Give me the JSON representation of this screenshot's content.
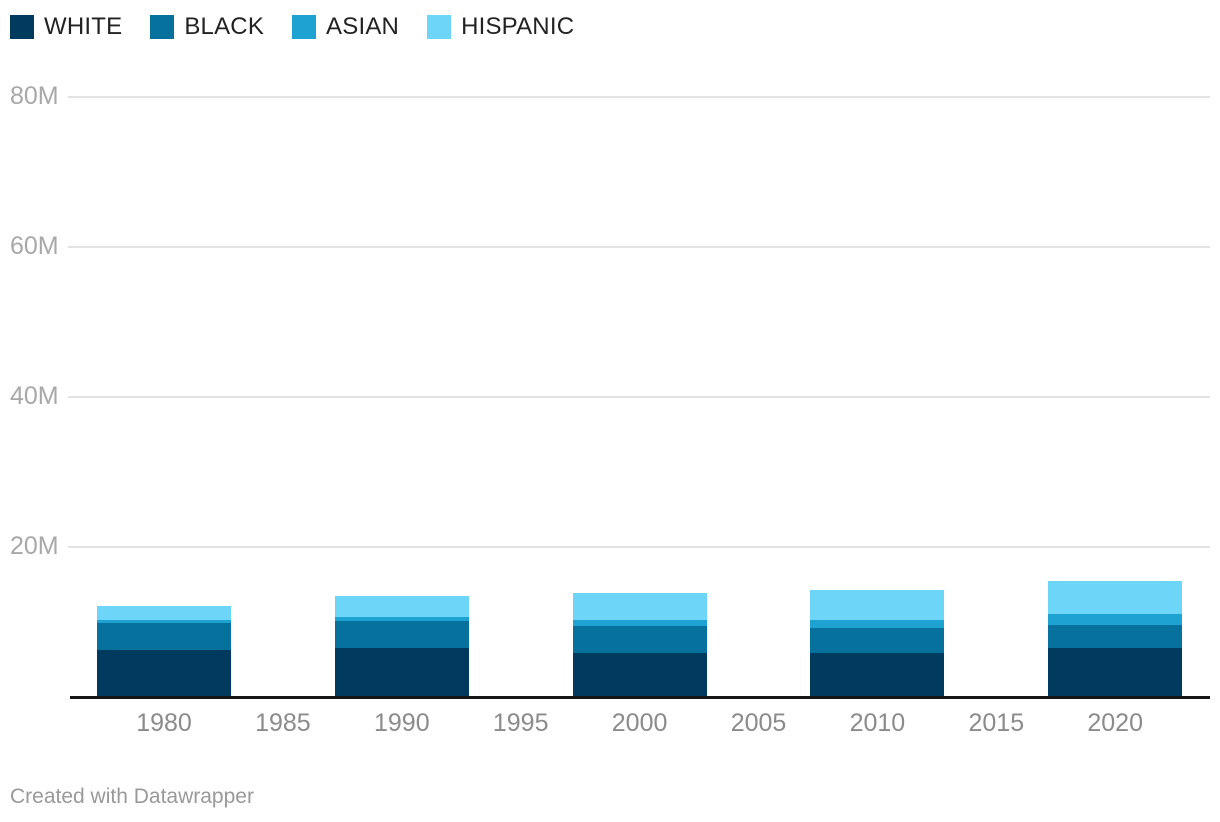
{
  "chart_data": {
    "type": "bar",
    "stacked": true,
    "title": "",
    "xlabel": "",
    "ylabel": "",
    "unit": "M",
    "categories": [
      "1980",
      "1990",
      "2000",
      "2010",
      "2020"
    ],
    "series": [
      {
        "name": "WHITE",
        "color": "#003A5E",
        "values": [
          6.2,
          6.4,
          5.7,
          5.8,
          6.4
        ]
      },
      {
        "name": "BLACK",
        "color": "#06719D",
        "values": [
          3.6,
          3.6,
          3.7,
          3.3,
          3.1
        ]
      },
      {
        "name": "ASIAN",
        "color": "#1EA2D2",
        "values": [
          0.35,
          0.6,
          0.8,
          1.1,
          1.5
        ]
      },
      {
        "name": "HISPANIC",
        "color": "#6DD5F7",
        "values": [
          1.9,
          2.7,
          3.6,
          4.0,
          4.3
        ]
      }
    ],
    "x_ticks": [
      "1980",
      "1985",
      "1990",
      "1995",
      "2000",
      "2005",
      "2010",
      "2015",
      "2020"
    ],
    "y_ticks": [
      {
        "value": 20,
        "label": "20M"
      },
      {
        "value": 40,
        "label": "40M"
      },
      {
        "value": 60,
        "label": "60M"
      },
      {
        "value": 80,
        "label": "80M"
      }
    ],
    "ylim": [
      0,
      93
    ],
    "grid": true,
    "legend_position": "top-left",
    "stack_order_bottom_to_top": [
      "WHITE",
      "BLACK",
      "ASIAN",
      "HISPANIC"
    ]
  },
  "footer": {
    "credit": "Created with Datawrapper"
  },
  "colors": {
    "background": "#FFFFFF",
    "axis": "#161616",
    "gridline": "#E2E2E2",
    "x_tick_text": "#8B8B8B",
    "y_tick_text": "#A8A8A8",
    "legend_text": "#222222",
    "footer_text": "#999999"
  }
}
